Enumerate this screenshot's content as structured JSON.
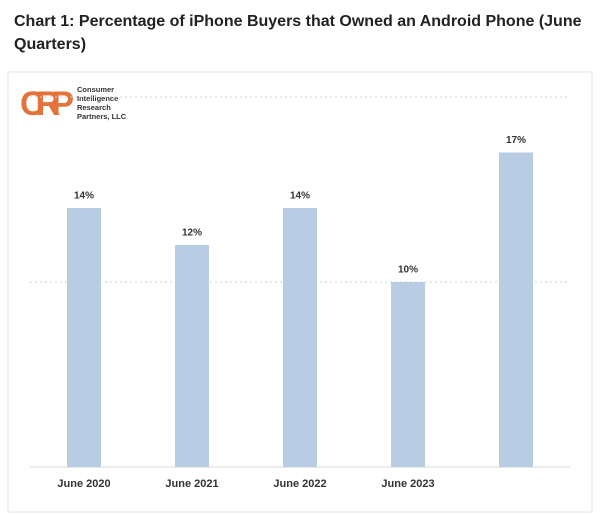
{
  "chart_data": {
    "type": "bar",
    "title": "Chart 1: Percentage of iPhone Buyers that Owned an Android Phone (June Quarters)",
    "logo": {
      "mark": "CIRP",
      "lines": [
        "Consumer",
        "Intelligence",
        "Research",
        "Partners, LLC"
      ]
    },
    "categories": [
      "June 2020",
      "June 2021",
      "June 2022",
      "June 2023",
      null
    ],
    "values": [
      14,
      12,
      14,
      10,
      17
    ],
    "value_labels": [
      "14%",
      "12%",
      "14%",
      "10%",
      "17%"
    ],
    "color": "#b8cce4",
    "ylim": [
      0,
      20
    ],
    "yticks": [
      10,
      20
    ],
    "grid": true,
    "show_tick_labels": false
  }
}
